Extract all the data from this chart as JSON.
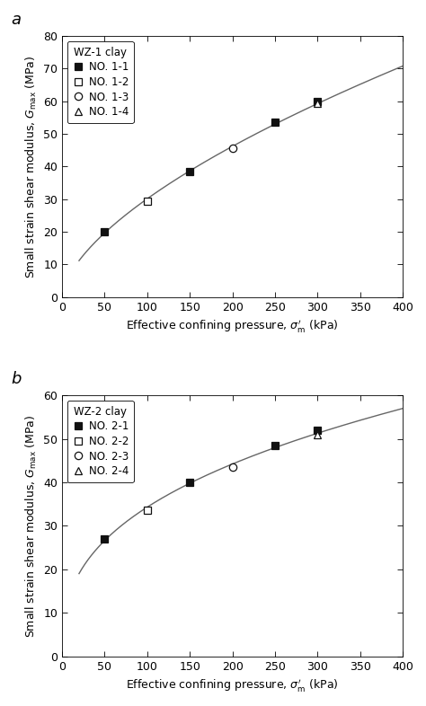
{
  "subplot_a": {
    "label": "a",
    "title": "WZ-1 clay",
    "series": [
      {
        "label": "NO. 1-1",
        "marker": "s",
        "filled": true,
        "x": [
          50,
          150,
          250,
          300
        ],
        "y": [
          20,
          38.5,
          53.5,
          60
        ]
      },
      {
        "label": "NO. 1-2",
        "marker": "s",
        "filled": false,
        "x": [
          100
        ],
        "y": [
          29.5
        ]
      },
      {
        "label": "NO. 1-3",
        "marker": "o",
        "filled": false,
        "x": [
          200
        ],
        "y": [
          45.5
        ]
      },
      {
        "label": "NO. 1-4",
        "marker": "^",
        "filled": false,
        "x": [
          300
        ],
        "y": [
          59.5
        ]
      }
    ],
    "xlim": [
      0,
      400
    ],
    "ylim": [
      0,
      80
    ],
    "xticks": [
      0,
      50,
      100,
      150,
      200,
      250,
      300,
      350,
      400
    ],
    "yticks": [
      0,
      10,
      20,
      30,
      40,
      50,
      60,
      70,
      80
    ]
  },
  "subplot_b": {
    "label": "b",
    "title": "WZ-2 clay",
    "series": [
      {
        "label": "NO. 2-1",
        "marker": "s",
        "filled": true,
        "x": [
          50,
          150,
          250,
          300
        ],
        "y": [
          27,
          40,
          48.5,
          52
        ]
      },
      {
        "label": "NO. 2-2",
        "marker": "s",
        "filled": false,
        "x": [
          100
        ],
        "y": [
          33.5
        ]
      },
      {
        "label": "NO. 2-3",
        "marker": "o",
        "filled": false,
        "x": [
          200
        ],
        "y": [
          43.5
        ]
      },
      {
        "label": "NO. 2-4",
        "marker": "^",
        "filled": false,
        "x": [
          300
        ],
        "y": [
          51
        ]
      }
    ],
    "xlim": [
      0,
      400
    ],
    "ylim": [
      0,
      60
    ],
    "xticks": [
      0,
      50,
      100,
      150,
      200,
      250,
      300,
      350,
      400
    ],
    "yticks": [
      0,
      10,
      20,
      30,
      40,
      50,
      60
    ]
  },
  "xlabel": "Effective confining pressure, $\\sigma^{\\prime}_{\\rm m}$ (kPa)",
  "ylabel": "Small strain shear modulus, $G_{\\rm max}$ (MPa)",
  "marker_size": 6,
  "line_color": "#666666",
  "marker_color_filled": "#111111",
  "marker_color_empty": "#111111",
  "font_size": 9,
  "legend_font_size": 8.5,
  "label_fontsize": 13
}
